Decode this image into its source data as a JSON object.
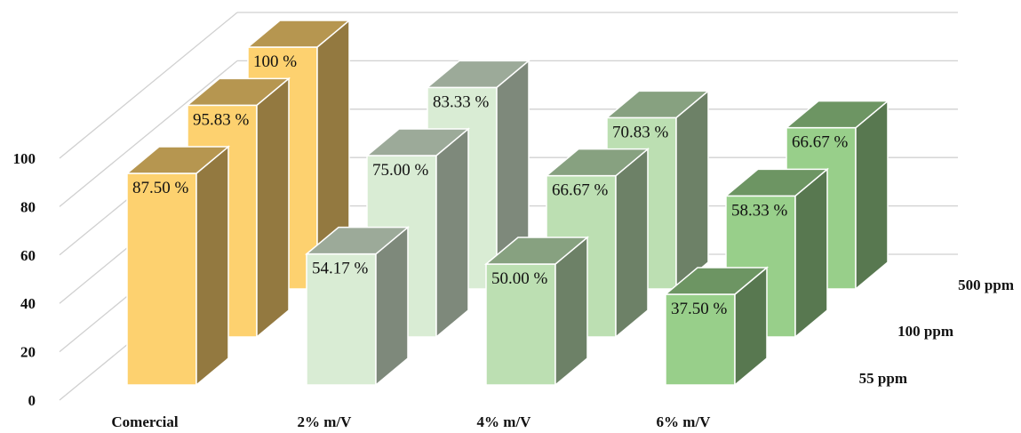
{
  "chart_data": {
    "type": "bar",
    "variant": "3d-column",
    "categories": [
      "Comercial",
      "2% m/V",
      "4% m/V",
      "6% m/V"
    ],
    "series": [
      {
        "name": "55 ppm",
        "values": [
          87.5,
          54.17,
          50.0,
          37.5
        ],
        "labels": [
          "87.50 %",
          "54.17 %",
          "50.00 %",
          "37.50 %"
        ]
      },
      {
        "name": "100 ppm",
        "values": [
          95.83,
          75.0,
          66.67,
          58.33
        ],
        "labels": [
          "95.83 %",
          "75.00 %",
          "66.67 %",
          "58.33 %"
        ]
      },
      {
        "name": "500 ppm",
        "values": [
          100,
          83.33,
          70.83,
          66.67
        ],
        "labels": [
          "100 %",
          "83.33 %",
          "70.83 %",
          "66.67 %"
        ]
      }
    ],
    "yticks": [
      "0",
      "20",
      "40",
      "60",
      "80",
      "100"
    ],
    "ylim": [
      0,
      100
    ],
    "grid": true,
    "colors": {
      "Comercial": "#fdd16f",
      "2% m/V": "#d9ecd4",
      "4% m/V": "#bcdfb2",
      "6% m/V": "#98cf8a",
      "gridline": "#d0d0d0"
    }
  }
}
